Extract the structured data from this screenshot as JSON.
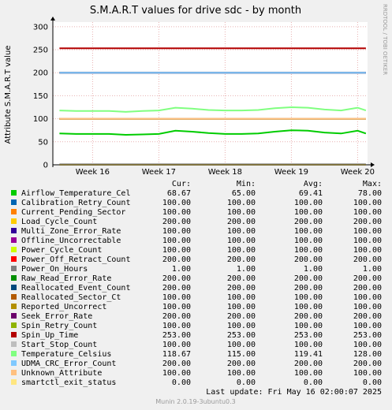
{
  "chart_data": {
    "type": "line",
    "title": "S.M.A.R.T values for drive sdc - by month",
    "y_label": "Attribute S.M.A.R.T value",
    "side_note": "RRDTOOL / TOBI OETIKER",
    "x": [
      15.5,
      15.75,
      16,
      16.25,
      16.5,
      16.75,
      17,
      17.25,
      17.5,
      17.75,
      18,
      18.25,
      18.5,
      18.75,
      19,
      19.25,
      19.5,
      19.75,
      20,
      20.125
    ],
    "xlim": [
      15.4,
      20.15
    ],
    "xticks": [
      {
        "value": 16,
        "label": "Week 16"
      },
      {
        "value": 17,
        "label": "Week 17"
      },
      {
        "value": 18,
        "label": "Week 18"
      },
      {
        "value": 19,
        "label": "Week 19"
      },
      {
        "value": 20,
        "label": "Week 20"
      }
    ],
    "ylim": [
      0,
      310
    ],
    "yticks": [
      0,
      50,
      100,
      150,
      200,
      250,
      300
    ],
    "grid": true,
    "stat_headers": [
      "Cur:",
      "Min:",
      "Avg:",
      "Max:"
    ],
    "series": [
      {
        "name": "Airflow_Temperature_Cel",
        "color": "#00cc00",
        "stats": [
          "68.67",
          "65.00",
          "69.41",
          "78.00"
        ],
        "values": [
          68,
          67,
          67,
          67,
          65,
          66,
          67,
          74,
          72,
          69,
          67,
          67,
          68,
          72,
          75,
          74,
          70,
          68,
          74,
          68
        ]
      },
      {
        "name": "Calibration_Retry_Count",
        "color": "#0066b3",
        "stats": [
          "100.00",
          "100.00",
          "100.00",
          "100.00"
        ],
        "values": [
          100,
          100,
          100,
          100,
          100,
          100,
          100,
          100,
          100,
          100,
          100,
          100,
          100,
          100,
          100,
          100,
          100,
          100,
          100,
          100
        ]
      },
      {
        "name": "Current_Pending_Sector",
        "color": "#ff8000",
        "stats": [
          "100.00",
          "100.00",
          "100.00",
          "100.00"
        ],
        "values": [
          100,
          100,
          100,
          100,
          100,
          100,
          100,
          100,
          100,
          100,
          100,
          100,
          100,
          100,
          100,
          100,
          100,
          100,
          100,
          100
        ]
      },
      {
        "name": "Load_Cycle_Count",
        "color": "#ffcc00",
        "stats": [
          "200.00",
          "200.00",
          "200.00",
          "200.00"
        ],
        "values": [
          200,
          200,
          200,
          200,
          200,
          200,
          200,
          200,
          200,
          200,
          200,
          200,
          200,
          200,
          200,
          200,
          200,
          200,
          200,
          200
        ]
      },
      {
        "name": "Multi_Zone_Error_Rate",
        "color": "#330099",
        "stats": [
          "100.00",
          "100.00",
          "100.00",
          "100.00"
        ],
        "values": [
          100,
          100,
          100,
          100,
          100,
          100,
          100,
          100,
          100,
          100,
          100,
          100,
          100,
          100,
          100,
          100,
          100,
          100,
          100,
          100
        ]
      },
      {
        "name": "Offline_Uncorrectable",
        "color": "#990099",
        "stats": [
          "100.00",
          "100.00",
          "100.00",
          "100.00"
        ],
        "values": [
          100,
          100,
          100,
          100,
          100,
          100,
          100,
          100,
          100,
          100,
          100,
          100,
          100,
          100,
          100,
          100,
          100,
          100,
          100,
          100
        ]
      },
      {
        "name": "Power_Cycle_Count",
        "color": "#ccff00",
        "stats": [
          "100.00",
          "100.00",
          "100.00",
          "100.00"
        ],
        "values": [
          100,
          100,
          100,
          100,
          100,
          100,
          100,
          100,
          100,
          100,
          100,
          100,
          100,
          100,
          100,
          100,
          100,
          100,
          100,
          100
        ]
      },
      {
        "name": "Power_Off_Retract_Count",
        "color": "#ff0000",
        "stats": [
          "200.00",
          "200.00",
          "200.00",
          "200.00"
        ],
        "values": [
          200,
          200,
          200,
          200,
          200,
          200,
          200,
          200,
          200,
          200,
          200,
          200,
          200,
          200,
          200,
          200,
          200,
          200,
          200,
          200
        ]
      },
      {
        "name": "Power_On_Hours",
        "color": "#808080",
        "stats": [
          "1.00",
          "1.00",
          "1.00",
          "1.00"
        ],
        "values": [
          1,
          1,
          1,
          1,
          1,
          1,
          1,
          1,
          1,
          1,
          1,
          1,
          1,
          1,
          1,
          1,
          1,
          1,
          1,
          1
        ]
      },
      {
        "name": "Raw_Read_Error_Rate",
        "color": "#008f00",
        "stats": [
          "200.00",
          "200.00",
          "200.00",
          "200.00"
        ],
        "values": [
          200,
          200,
          200,
          200,
          200,
          200,
          200,
          200,
          200,
          200,
          200,
          200,
          200,
          200,
          200,
          200,
          200,
          200,
          200,
          200
        ]
      },
      {
        "name": "Reallocated_Event_Count",
        "color": "#00487d",
        "stats": [
          "200.00",
          "200.00",
          "200.00",
          "200.00"
        ],
        "values": [
          200,
          200,
          200,
          200,
          200,
          200,
          200,
          200,
          200,
          200,
          200,
          200,
          200,
          200,
          200,
          200,
          200,
          200,
          200,
          200
        ]
      },
      {
        "name": "Reallocated_Sector_Ct",
        "color": "#b35a00",
        "stats": [
          "100.00",
          "100.00",
          "100.00",
          "100.00"
        ],
        "values": [
          100,
          100,
          100,
          100,
          100,
          100,
          100,
          100,
          100,
          100,
          100,
          100,
          100,
          100,
          100,
          100,
          100,
          100,
          100,
          100
        ]
      },
      {
        "name": "Reported_Uncorrect",
        "color": "#b38f00",
        "stats": [
          "100.00",
          "100.00",
          "100.00",
          "100.00"
        ],
        "values": [
          100,
          100,
          100,
          100,
          100,
          100,
          100,
          100,
          100,
          100,
          100,
          100,
          100,
          100,
          100,
          100,
          100,
          100,
          100,
          100
        ]
      },
      {
        "name": "Seek_Error_Rate",
        "color": "#6b006b",
        "stats": [
          "200.00",
          "200.00",
          "200.00",
          "200.00"
        ],
        "values": [
          200,
          200,
          200,
          200,
          200,
          200,
          200,
          200,
          200,
          200,
          200,
          200,
          200,
          200,
          200,
          200,
          200,
          200,
          200,
          200
        ]
      },
      {
        "name": "Spin_Retry_Count",
        "color": "#8fb300",
        "stats": [
          "100.00",
          "100.00",
          "100.00",
          "100.00"
        ],
        "values": [
          100,
          100,
          100,
          100,
          100,
          100,
          100,
          100,
          100,
          100,
          100,
          100,
          100,
          100,
          100,
          100,
          100,
          100,
          100,
          100
        ]
      },
      {
        "name": "Spin_Up_Time",
        "color": "#b30000",
        "stats": [
          "253.00",
          "253.00",
          "253.00",
          "253.00"
        ],
        "values": [
          253,
          253,
          253,
          253,
          253,
          253,
          253,
          253,
          253,
          253,
          253,
          253,
          253,
          253,
          253,
          253,
          253,
          253,
          253,
          253
        ]
      },
      {
        "name": "Start_Stop_Count",
        "color": "#bebebe",
        "stats": [
          "100.00",
          "100.00",
          "100.00",
          "100.00"
        ],
        "values": [
          100,
          100,
          100,
          100,
          100,
          100,
          100,
          100,
          100,
          100,
          100,
          100,
          100,
          100,
          100,
          100,
          100,
          100,
          100,
          100
        ]
      },
      {
        "name": "Temperature_Celsius",
        "color": "#80ff80",
        "stats": [
          "118.67",
          "115.00",
          "119.41",
          "128.00"
        ],
        "values": [
          118,
          117,
          117,
          117,
          115,
          117,
          118,
          124,
          122,
          119,
          118,
          118,
          119,
          123,
          125,
          124,
          120,
          118,
          124,
          118
        ]
      },
      {
        "name": "UDMA_CRC_Error_Count",
        "color": "#80c9ff",
        "stats": [
          "200.00",
          "200.00",
          "200.00",
          "200.00"
        ],
        "values": [
          200,
          200,
          200,
          200,
          200,
          200,
          200,
          200,
          200,
          200,
          200,
          200,
          200,
          200,
          200,
          200,
          200,
          200,
          200,
          200
        ]
      },
      {
        "name": "Unknown_Attribute",
        "color": "#ffc080",
        "stats": [
          "100.00",
          "100.00",
          "100.00",
          "100.00"
        ],
        "values": [
          100,
          100,
          100,
          100,
          100,
          100,
          100,
          100,
          100,
          100,
          100,
          100,
          100,
          100,
          100,
          100,
          100,
          100,
          100,
          100
        ]
      },
      {
        "name": "smartctl_exit_status",
        "color": "#ffe680",
        "stats": [
          "0.00",
          "0.00",
          "0.00",
          "0.00"
        ],
        "values": [
          0,
          0,
          0,
          0,
          0,
          0,
          0,
          0,
          0,
          0,
          0,
          0,
          0,
          0,
          0,
          0,
          0,
          0,
          0,
          0
        ]
      }
    ],
    "last_update": "Last update:  Fri May 16 02:00:07 2025",
    "footer": "Munin 2.0.19-3ubuntu0.3"
  }
}
